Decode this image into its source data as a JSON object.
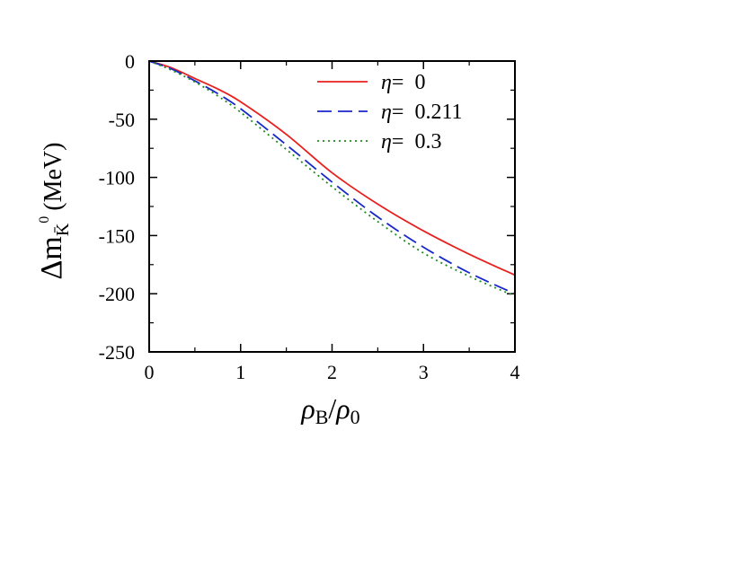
{
  "chart_data": {
    "type": "line",
    "xlabel": {
      "main": "ρ",
      "sub1": "B",
      "slash": "/",
      "main2": "ρ",
      "sub2": "0"
    },
    "ylabel": {
      "delta_m": "Δm",
      "sub": "K̄",
      "sup": "0",
      "unit": "(MeV)"
    },
    "xlim": [
      0,
      4
    ],
    "ylim": [
      -250,
      0
    ],
    "xticks": [
      0,
      1,
      2,
      3,
      4
    ],
    "yticks": [
      0,
      -50,
      -100,
      -150,
      -200,
      -250
    ],
    "xtick_labels": [
      "0",
      "1",
      "2",
      "3",
      "4"
    ],
    "ytick_labels": [
      "0",
      "-50",
      "-100",
      "-150",
      "-200",
      "-250"
    ],
    "legend_position": "top-right",
    "series": [
      {
        "name": "η=  0",
        "eta_symbol": "η",
        "eta_text": "=  0",
        "color": "#e8201e",
        "style": "solid",
        "x": [
          0,
          0.25,
          0.5,
          0.75,
          1.0,
          1.5,
          2.0,
          2.5,
          3.0,
          3.5,
          4.0
        ],
        "y": [
          0,
          -6,
          -15,
          -24,
          -35,
          -63,
          -96,
          -123,
          -146,
          -166,
          -184
        ]
      },
      {
        "name": "η=  0.211",
        "eta_symbol": "η",
        "eta_text": "=  0.211",
        "color": "#1a28c8",
        "style": "dashed",
        "x": [
          0,
          0.25,
          0.5,
          0.75,
          1.0,
          1.5,
          2.0,
          2.5,
          3.0,
          3.5,
          4.0
        ],
        "y": [
          0,
          -7,
          -17,
          -28,
          -41,
          -72,
          -104,
          -134,
          -160,
          -182,
          -200
        ]
      },
      {
        "name": "η=  0.3",
        "eta_symbol": "η",
        "eta_text": "=  0.3",
        "color": "#1e8a1e",
        "style": "dotted",
        "x": [
          0,
          0.25,
          0.5,
          0.75,
          1.0,
          1.5,
          2.0,
          2.5,
          3.0,
          3.5,
          4.0
        ],
        "y": [
          0,
          -8,
          -18,
          -30,
          -44,
          -76,
          -108,
          -138,
          -165,
          -185,
          -202
        ]
      }
    ]
  }
}
